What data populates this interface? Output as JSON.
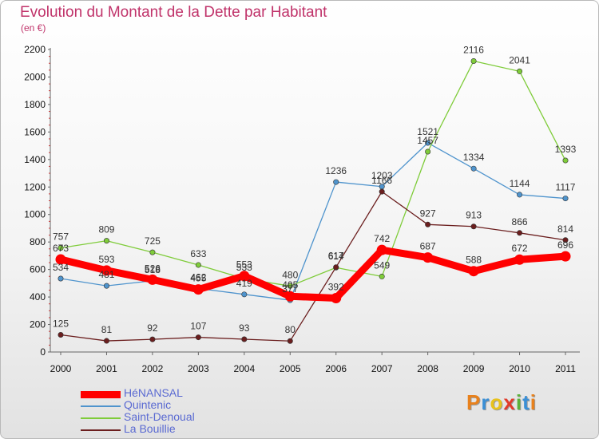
{
  "header": {
    "title": "Evolution du Montant de la Dette par Habitant",
    "unit": "(en €)"
  },
  "chart_data": {
    "type": "line",
    "title": "Evolution du Montant de la Dette par Habitant",
    "xlabel": "",
    "ylabel": "(en €)",
    "ylim": [
      0,
      2200
    ],
    "y_ticks": [
      0,
      200,
      400,
      600,
      800,
      1000,
      1200,
      1400,
      1600,
      1800,
      2000,
      2200
    ],
    "x": [
      "2000",
      "2001",
      "2002",
      "2003",
      "2004",
      "2005",
      "2006",
      "2007",
      "2008",
      "2009",
      "2010",
      "2011"
    ],
    "grid": false,
    "legend_position": "bottom-left",
    "series": [
      {
        "name": "HéNANSAL",
        "color": "#ff0000",
        "values": [
          673,
          593,
          526,
          455,
          553,
          405,
          392,
          742,
          687,
          588,
          672,
          696
        ],
        "labels": [
          "673",
          "593",
          "526",
          "455",
          "553",
          "405",
          "392",
          "742",
          "687",
          "588",
          "672",
          "696"
        ]
      },
      {
        "name": "Quintenic",
        "color": "#4f94cd",
        "values": [
          534,
          481,
          518,
          462,
          419,
          377,
          1236,
          1203,
          1521,
          1334,
          1144,
          1117
        ],
        "labels": [
          "534",
          "481",
          "518",
          "462",
          "419",
          "377",
          "1236",
          "1203",
          "1521",
          "1334",
          "1144",
          "1117"
        ]
      },
      {
        "name": "Saint-Denoual",
        "color": "#7fcc3a",
        "values": [
          757,
          809,
          725,
          633,
          533,
          480,
          614,
          549,
          1457,
          2116,
          2041,
          1393
        ],
        "labels": [
          "757",
          "809",
          "725",
          "633",
          "533",
          "480",
          "614",
          "549",
          "1457",
          "2116",
          "2041",
          "1393"
        ]
      },
      {
        "name": "La Bouillie",
        "color": "#6b1e1e",
        "values": [
          125,
          81,
          92,
          107,
          93,
          80,
          617,
          1166,
          927,
          913,
          866,
          814
        ],
        "labels": [
          "125",
          "81",
          "92",
          "107",
          "93",
          "80",
          "617",
          "1166",
          "927",
          "913",
          "866",
          "814"
        ]
      }
    ]
  },
  "logo": {
    "letters": [
      "P",
      "r",
      "o",
      "x",
      "i",
      "t",
      "i"
    ],
    "colors": [
      "#e8811c",
      "#3a8fd6",
      "#e8c21c",
      "#e23b2b",
      "#5bb13a",
      "#3a8fd6",
      "#e8811c"
    ]
  }
}
